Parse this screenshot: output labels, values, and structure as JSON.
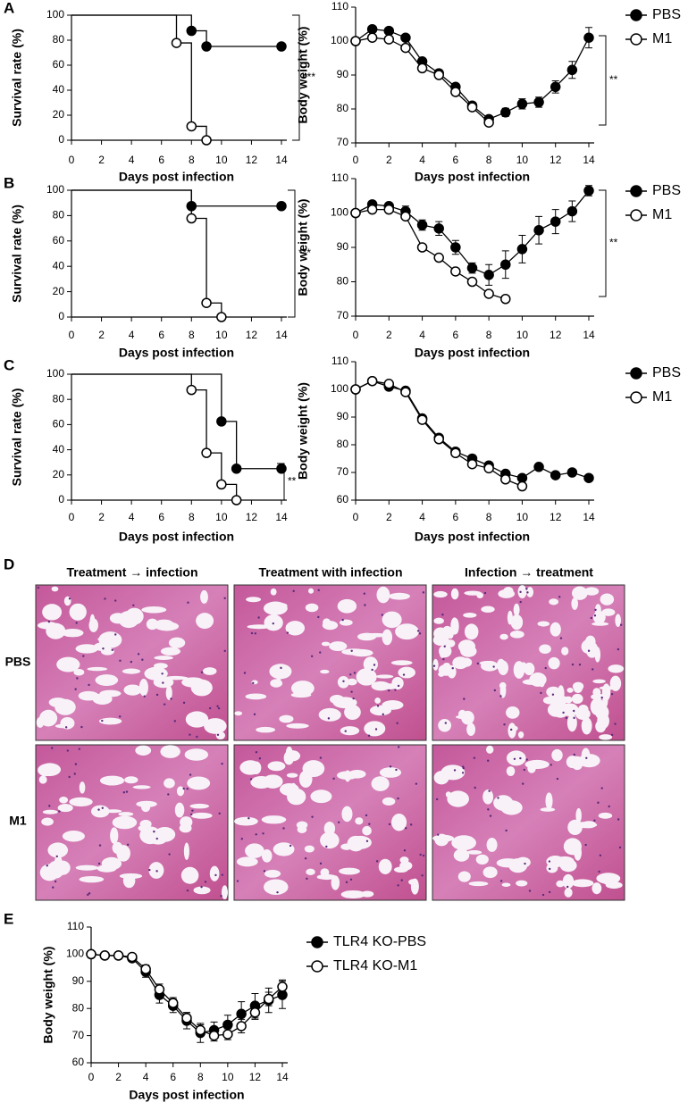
{
  "chart_data": [
    {
      "type": "step",
      "ylabel": "Survival rate (%)",
      "xlabel": "Days post infection",
      "xlim": [
        0,
        14
      ],
      "ylim": [
        0,
        100
      ],
      "xticks": [
        0,
        2,
        4,
        6,
        8,
        10,
        12,
        14
      ],
      "yticks": [
        0,
        20,
        40,
        60,
        80,
        100
      ],
      "annotation": "***",
      "series": [
        {
          "color": "#000000",
          "marker_fill": "#000000",
          "x": [
            0,
            8,
            9,
            14
          ],
          "values": [
            100,
            87.5,
            75,
            75
          ]
        },
        {
          "color": "#000000",
          "marker_fill": "#ffffff",
          "x": [
            0,
            7,
            8,
            9
          ],
          "values": [
            100,
            77.8,
            11.1,
            0
          ]
        }
      ]
    },
    {
      "type": "line",
      "ylabel": "Body weight (%)",
      "xlabel": "Days post infection",
      "xlim": [
        0,
        14
      ],
      "ylim": [
        70,
        110
      ],
      "xticks": [
        0,
        2,
        4,
        6,
        8,
        10,
        12,
        14
      ],
      "yticks": [
        70,
        80,
        90,
        100,
        110
      ],
      "annotation": "**",
      "series": [
        {
          "name": "PBS",
          "color": "#000000",
          "marker_fill": "#000000",
          "x": [
            0,
            1,
            2,
            3,
            4,
            5,
            6,
            7,
            8,
            9,
            10,
            11,
            12,
            13,
            14
          ],
          "values": [
            100,
            103.5,
            103,
            101,
            94,
            90.5,
            86.5,
            81,
            77,
            79,
            81.5,
            82,
            86.5,
            91.5,
            101
          ],
          "errors": [
            0,
            0.8,
            0.8,
            0.8,
            1,
            1,
            1,
            1,
            1,
            1.2,
            1.5,
            1.5,
            1.8,
            2.5,
            3
          ]
        },
        {
          "name": "M1",
          "color": "#000000",
          "marker_fill": "#ffffff",
          "x": [
            0,
            1,
            2,
            3,
            4,
            5,
            6,
            7,
            8
          ],
          "values": [
            100,
            101,
            100.5,
            98,
            92,
            90,
            85,
            80.5,
            76
          ]
        }
      ]
    },
    {
      "type": "step",
      "ylabel": "Survival rate (%)",
      "xlabel": "Days post infection",
      "xlim": [
        0,
        14
      ],
      "ylim": [
        0,
        100
      ],
      "xticks": [
        0,
        2,
        4,
        6,
        8,
        10,
        12,
        14
      ],
      "yticks": [
        0,
        20,
        40,
        60,
        80,
        100
      ],
      "annotation": "***",
      "series": [
        {
          "color": "#000000",
          "marker_fill": "#000000",
          "x": [
            0,
            8,
            14
          ],
          "values": [
            100,
            87.5,
            87.5
          ]
        },
        {
          "color": "#000000",
          "marker_fill": "#ffffff",
          "x": [
            0,
            8,
            9,
            10
          ],
          "values": [
            100,
            77.8,
            11.1,
            0
          ]
        }
      ]
    },
    {
      "type": "line",
      "ylabel": "Body weight (%)",
      "xlabel": "Days post infection",
      "xlim": [
        0,
        14
      ],
      "ylim": [
        70,
        110
      ],
      "xticks": [
        0,
        2,
        4,
        6,
        8,
        10,
        12,
        14
      ],
      "yticks": [
        70,
        80,
        90,
        100,
        110
      ],
      "annotation": "**",
      "series": [
        {
          "name": "PBS",
          "color": "#000000",
          "marker_fill": "#000000",
          "x": [
            0,
            1,
            2,
            3,
            4,
            5,
            6,
            7,
            8,
            9,
            10,
            11,
            12,
            13,
            14
          ],
          "values": [
            100,
            102.5,
            102,
            100.5,
            96.5,
            95.5,
            90,
            84,
            82,
            85,
            89.5,
            95,
            97.5,
            100.5,
            106.5
          ],
          "errors": [
            0,
            1,
            1,
            1.5,
            1.5,
            2,
            2,
            1.5,
            3,
            4,
            4,
            4,
            3.5,
            3,
            1.5
          ]
        },
        {
          "name": "M1",
          "color": "#000000",
          "marker_fill": "#ffffff",
          "x": [
            0,
            1,
            2,
            3,
            4,
            5,
            6,
            7,
            8,
            9
          ],
          "values": [
            100,
            101,
            101,
            99,
            90,
            87,
            83,
            80,
            76.5,
            75
          ]
        }
      ]
    },
    {
      "type": "step",
      "ylabel": "Survival rate (%)",
      "xlabel": "Days post infection",
      "xlim": [
        0,
        14
      ],
      "ylim": [
        0,
        100
      ],
      "xticks": [
        0,
        2,
        4,
        6,
        8,
        10,
        12,
        14
      ],
      "yticks": [
        0,
        20,
        40,
        60,
        80,
        100
      ],
      "annotation": "**",
      "series": [
        {
          "color": "#000000",
          "marker_fill": "#000000",
          "x": [
            0,
            10,
            11,
            14
          ],
          "values": [
            100,
            62.5,
            25,
            25
          ]
        },
        {
          "color": "#000000",
          "marker_fill": "#ffffff",
          "x": [
            0,
            8,
            9,
            10,
            11
          ],
          "values": [
            100,
            87.5,
            37.5,
            12.5,
            0
          ]
        }
      ]
    },
    {
      "type": "line",
      "ylabel": "Body weight (%)",
      "xlabel": "Days post infection",
      "xlim": [
        0,
        14
      ],
      "ylim": [
        60,
        110
      ],
      "xticks": [
        0,
        2,
        4,
        6,
        8,
        10,
        12,
        14
      ],
      "yticks": [
        60,
        70,
        80,
        90,
        100,
        110
      ],
      "series": [
        {
          "name": "PBS",
          "color": "#000000",
          "marker_fill": "#000000",
          "x": [
            0,
            1,
            2,
            3,
            4,
            5,
            6,
            7,
            8,
            9,
            10,
            11,
            12,
            13,
            14
          ],
          "values": [
            100,
            103,
            101,
            99.5,
            89.5,
            82.5,
            77.5,
            75,
            72.5,
            69.5,
            68,
            72,
            69,
            70,
            68
          ]
        },
        {
          "name": "M1",
          "color": "#000000",
          "marker_fill": "#ffffff",
          "x": [
            0,
            1,
            2,
            3,
            4,
            5,
            6,
            7,
            8,
            9,
            10
          ],
          "values": [
            100,
            103,
            102,
            99,
            89,
            82,
            77,
            73,
            71.5,
            67.5,
            65
          ]
        }
      ]
    },
    {
      "type": "line",
      "ylabel": "Body weight (%)",
      "xlabel": "Days post infection",
      "xlim": [
        0,
        14
      ],
      "ylim": [
        60,
        110
      ],
      "xticks": [
        0,
        2,
        4,
        6,
        8,
        10,
        12,
        14
      ],
      "yticks": [
        60,
        70,
        80,
        90,
        100,
        110
      ],
      "series": [
        {
          "name": "TLR4 KO-PBS",
          "color": "#000000",
          "marker_fill": "#000000",
          "x": [
            0,
            1,
            2,
            3,
            4,
            5,
            6,
            7,
            8,
            9,
            10,
            11,
            12,
            13,
            14
          ],
          "values": [
            100,
            99.5,
            99.5,
            98.5,
            93.5,
            85,
            81,
            75.5,
            71,
            72,
            74,
            78,
            81,
            83,
            85
          ],
          "errors": [
            0,
            0,
            0,
            1,
            2,
            3,
            2.5,
            3,
            3.5,
            3,
            3.5,
            4.5,
            4.5,
            4.5,
            5
          ]
        },
        {
          "name": "TLR4 KO-M1",
          "color": "#000000",
          "marker_fill": "#ffffff",
          "x": [
            0,
            1,
            2,
            3,
            4,
            5,
            6,
            7,
            8,
            9,
            10,
            11,
            12,
            13,
            14
          ],
          "values": [
            100,
            99.5,
            99.5,
            99,
            94.5,
            87,
            82,
            76.5,
            72,
            70,
            70.5,
            73.5,
            78.5,
            83.5,
            88
          ],
          "errors": [
            0,
            0,
            0,
            0.8,
            1.5,
            2,
            2,
            2,
            2,
            2,
            2,
            2.5,
            2.5,
            2.5,
            2.5
          ]
        }
      ]
    }
  ],
  "panel_labels": [
    "A",
    "B",
    "C",
    "D",
    "E"
  ],
  "histology": {
    "columns": [
      "Treatment → infection",
      "Treatment  with infection",
      "Infection → treatment"
    ],
    "rows": [
      "PBS",
      "M1"
    ]
  }
}
